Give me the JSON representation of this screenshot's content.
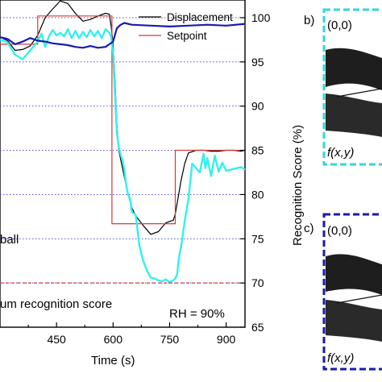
{
  "chart_data": {
    "type": "line",
    "xlabel": "Time (s)",
    "ylabel_right": "Recognition Score (%)",
    "xlim": [
      300,
      950
    ],
    "ylim_right": [
      65,
      102
    ],
    "x_ticks": [
      450,
      600,
      750,
      900
    ],
    "y_ticks_right": [
      65,
      70,
      75,
      80,
      85,
      90,
      95,
      100
    ],
    "grid": "horizontal dotted",
    "legend_position": "top-right",
    "series": [
      {
        "name": "Displacement",
        "color": "#000000",
        "x": [
          300,
          320,
          340,
          360,
          380,
          400,
          420,
          440,
          460,
          480,
          500,
          520,
          540,
          560,
          580,
          590,
          595,
          600,
          605,
          610,
          615,
          620,
          625,
          630,
          640,
          650,
          660,
          680,
          700,
          720,
          740,
          760,
          765,
          770,
          780,
          790,
          800,
          820,
          840,
          860,
          880,
          900,
          920,
          940,
          950
        ],
        "values": [
          97.8,
          97.4,
          96.3,
          96.4,
          96.8,
          98.0,
          100.0,
          101.0,
          101.9,
          101.6,
          100.5,
          99.6,
          99.8,
          100.2,
          100.5,
          100.4,
          99.0,
          97.0,
          93.0,
          88.0,
          85.0,
          84.0,
          83.0,
          82.0,
          80.0,
          78.5,
          77.6,
          76.5,
          75.5,
          75.8,
          76.8,
          77.1,
          77.8,
          79.0,
          81.5,
          83.5,
          84.7,
          85.0,
          85.0,
          84.9,
          84.9,
          85.0,
          85.0,
          84.9,
          85.0
        ]
      },
      {
        "name": "Setpoint",
        "color": "#d43c3c",
        "x": [
          300,
          400,
          400,
          597,
          597,
          765,
          765,
          950
        ],
        "values": [
          97.0,
          97.0,
          100.2,
          100.2,
          76.7,
          76.7,
          85.0,
          85.0
        ]
      },
      {
        "name": "",
        "color": "#33f0f0",
        "x": [
          300,
          320,
          340,
          360,
          380,
          400,
          410,
          420,
          430,
          440,
          450,
          460,
          470,
          480,
          490,
          500,
          510,
          520,
          530,
          540,
          550,
          560,
          570,
          580,
          590,
          595,
          600,
          605,
          610,
          615,
          620,
          625,
          630,
          635,
          640,
          645,
          650,
          660,
          670,
          680,
          690,
          700,
          710,
          720,
          730,
          740,
          750,
          760,
          765,
          770,
          775,
          780,
          790,
          800,
          810,
          820,
          830,
          840,
          845,
          850,
          860,
          870,
          880,
          890,
          900,
          920,
          940,
          950
        ],
        "values": [
          97.5,
          97.2,
          95.8,
          95.3,
          96.3,
          97.3,
          98.2,
          96.7,
          97.9,
          98.6,
          98.0,
          98.3,
          97.9,
          98.7,
          97.7,
          98.5,
          97.7,
          98.4,
          97.8,
          98.6,
          97.9,
          98.5,
          97.7,
          98.7,
          98.3,
          97.8,
          96.0,
          91.5,
          87.0,
          85.4,
          84.5,
          83.9,
          82.8,
          81.0,
          80.0,
          79.5,
          78.0,
          77.7,
          74.2,
          72.5,
          71.4,
          70.6,
          70.5,
          70.3,
          70.2,
          70.4,
          70.1,
          70.3,
          70.5,
          71.0,
          73.0,
          74.0,
          77.0,
          79.5,
          83.5,
          83.0,
          82.5,
          84.6,
          83.0,
          84.1,
          82.1,
          84.4,
          82.6,
          83.6,
          82.7,
          82.9,
          83.1,
          82.8
        ]
      },
      {
        "name": "",
        "color": "#1a1ab0",
        "x": [
          300,
          320,
          340,
          360,
          380,
          400,
          420,
          440,
          460,
          480,
          500,
          520,
          540,
          560,
          580,
          600,
          610,
          620,
          630,
          650,
          700,
          750,
          800,
          850,
          900,
          950
        ],
        "values": [
          97.8,
          97.6,
          97.0,
          97.3,
          97.7,
          97.4,
          97.3,
          97.1,
          97.0,
          96.9,
          96.7,
          96.6,
          96.8,
          96.6,
          96.7,
          97.3,
          98.8,
          99.2,
          99.4,
          99.2,
          99.1,
          99.0,
          99.1,
          99.2,
          99.1,
          99.3
        ]
      },
      {
        "name": "",
        "color": "#d43c3c",
        "style": "dashed",
        "x": [
          300,
          950
        ],
        "values": [
          70.0,
          70.0
        ]
      }
    ]
  },
  "annotations": {
    "ball_label": "ball",
    "min_score_label": "um recognition score",
    "rh_label": "RH = 90%"
  },
  "side_panels": [
    {
      "panel_label": "b)",
      "origin_label": "(0,0)",
      "func_label": "f(x,y)",
      "frame_color": "#33d6d6"
    },
    {
      "panel_label": "c)",
      "origin_label": "(0,0)",
      "func_label": "f(x,y)",
      "frame_color": "#1a1ab0"
    }
  ]
}
